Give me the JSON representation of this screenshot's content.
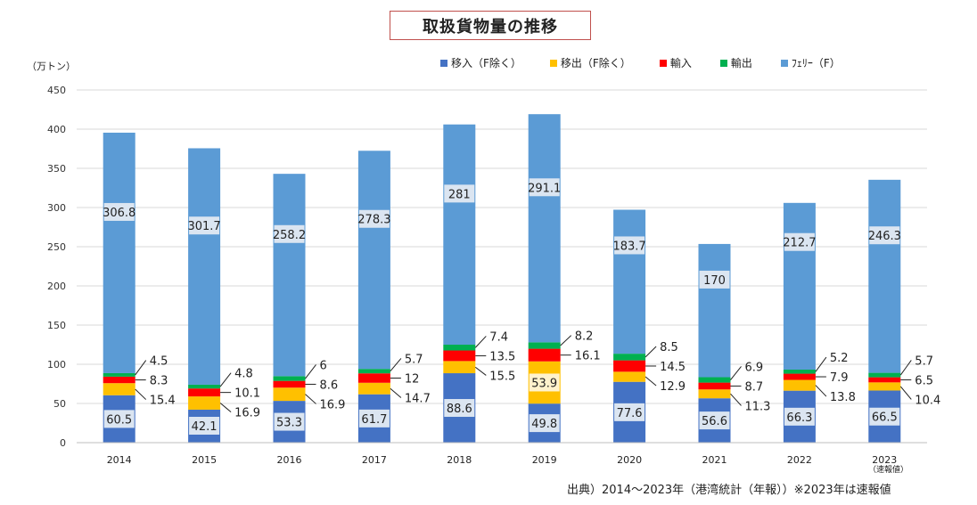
{
  "chart_data": {
    "type": "bar",
    "stacked": true,
    "title": "取扱貨物量の推移",
    "ylabel": "（万トン）",
    "ylim": [
      0,
      450
    ],
    "yticks": [
      0,
      50,
      100,
      150,
      200,
      250,
      300,
      350,
      400,
      450
    ],
    "grid": true,
    "legend_position": "top",
    "categories": [
      "2014",
      "2015",
      "2016",
      "2017",
      "2018",
      "2019",
      "2020",
      "2021",
      "2022",
      "2023"
    ],
    "category_notes": [
      "",
      "",
      "",
      "",
      "",
      "",
      "",
      "",
      "",
      "（速報値）"
    ],
    "series": [
      {
        "name": "移入（F除く）",
        "color": "#4472c4",
        "values": [
          60.5,
          42.1,
          53.3,
          61.7,
          88.6,
          49.8,
          77.6,
          56.6,
          66.3,
          66.5
        ]
      },
      {
        "name": "移出（F除く）",
        "color": "#ffc000",
        "values": [
          15.4,
          16.9,
          16.9,
          14.7,
          15.5,
          53.9,
          12.9,
          11.3,
          13.8,
          10.4
        ]
      },
      {
        "name": "輸入",
        "color": "#ff0000",
        "values": [
          8.3,
          10.1,
          8.6,
          12,
          13.5,
          16.1,
          14.5,
          8.7,
          7.9,
          6.5
        ]
      },
      {
        "name": "輸出",
        "color": "#00b050",
        "values": [
          4.5,
          4.8,
          6,
          5.7,
          7.4,
          8.2,
          8.5,
          6.9,
          5.2,
          5.7
        ]
      },
      {
        "name": "ﾌｪﾘｰ（F）",
        "color": "#5b9bd5",
        "values": [
          306.8,
          301.7,
          258.2,
          278.3,
          281,
          291.1,
          183.7,
          170,
          212.7,
          246.3
        ]
      }
    ]
  },
  "source_text": "出典）2014～2023年（港湾統計（年報））※2023年は速報値"
}
